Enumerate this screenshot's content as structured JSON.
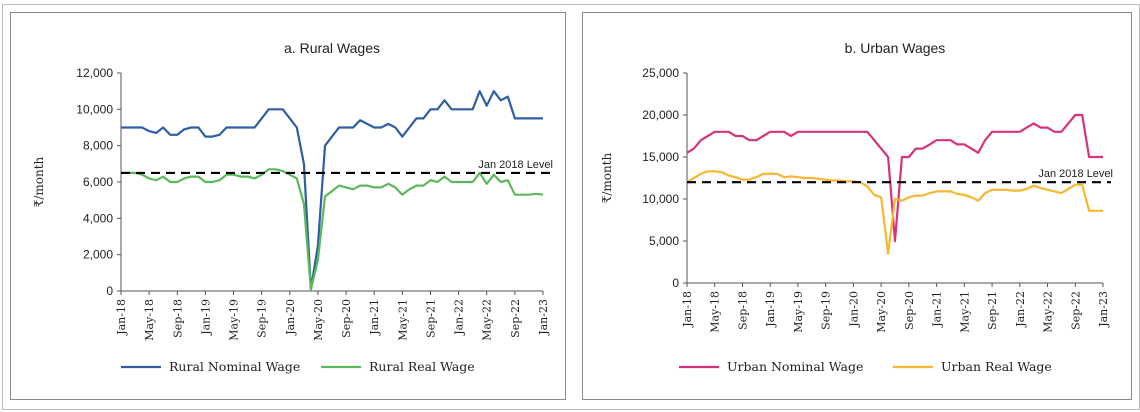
{
  "chart_data": [
    {
      "type": "line",
      "title": "a. Rural Wages",
      "ylabel": "₹/month",
      "ylim": [
        0,
        12000
      ],
      "yticks": [
        0,
        2000,
        4000,
        6000,
        8000,
        10000,
        12000
      ],
      "ytick_labels": [
        "0",
        "2,000",
        "4,000",
        "6,000",
        "8,000",
        "10,000",
        "12,000"
      ],
      "x_tick_labels": [
        "Jan-18",
        "May-18",
        "Sep-18",
        "Jan-19",
        "May-19",
        "Sep-19",
        "Jan-20",
        "May-20",
        "Sep-20",
        "Jan-21",
        "May-21",
        "Sep-21",
        "Jan-22",
        "May-22",
        "Sep-22",
        "Jan-23"
      ],
      "n_months": 61,
      "reference_line": {
        "label": "Jan 2018 Level",
        "value": 6500,
        "color": "#000000"
      },
      "legend_position": "bottom",
      "series": [
        {
          "name": "Rural Nominal Wage",
          "color": "#2e5fa3",
          "values": [
            9000,
            9000,
            9000,
            9000,
            8800,
            8700,
            9000,
            8600,
            8600,
            8900,
            9000,
            9000,
            8500,
            8500,
            8600,
            9000,
            9000,
            9000,
            9000,
            9000,
            9500,
            10000,
            10000,
            10000,
            9500,
            9000,
            7000,
            100,
            2500,
            8000,
            8500,
            9000,
            9000,
            9000,
            9400,
            9200,
            9000,
            9000,
            9200,
            9000,
            8500,
            9000,
            9500,
            9500,
            10000,
            10000,
            10500,
            10000,
            10000,
            10000,
            10000,
            11000,
            10200,
            11000,
            10500,
            10700,
            9500,
            9500,
            9500,
            9500,
            9500
          ]
        },
        {
          "name": "Rural Real Wage",
          "color": "#5bb85b",
          "values": [
            6500,
            6500,
            6500,
            6400,
            6200,
            6100,
            6300,
            6000,
            6000,
            6200,
            6300,
            6300,
            6000,
            6000,
            6100,
            6400,
            6400,
            6300,
            6300,
            6200,
            6400,
            6700,
            6700,
            6600,
            6400,
            6200,
            4800,
            100,
            1700,
            5200,
            5500,
            5800,
            5700,
            5600,
            5800,
            5800,
            5700,
            5700,
            5900,
            5700,
            5300,
            5600,
            5800,
            5800,
            6100,
            6000,
            6300,
            6000,
            6000,
            6000,
            6000,
            6500,
            5900,
            6400,
            6000,
            6100,
            5300,
            5300,
            5300,
            5350,
            5300
          ]
        }
      ]
    },
    {
      "type": "line",
      "title": "b. Urban Wages",
      "ylabel": "₹/month",
      "ylim": [
        0,
        25000
      ],
      "yticks": [
        0,
        5000,
        10000,
        15000,
        20000,
        25000
      ],
      "ytick_labels": [
        "0",
        "5,000",
        "10,000",
        "15,000",
        "20,000",
        "25,000"
      ],
      "x_tick_labels": [
        "Jan-18",
        "May-18",
        "Sep-18",
        "Jan-19",
        "May-19",
        "Sep-19",
        "Jan-20",
        "May-20",
        "Sep-20",
        "Jan-21",
        "May-21",
        "Sep-21",
        "Jan-22",
        "May-22",
        "Sep-22",
        "Jan-23"
      ],
      "n_months": 61,
      "reference_line": {
        "label": "Jan 2018 Level",
        "value": 12000,
        "color": "#000000"
      },
      "legend_position": "bottom",
      "series": [
        {
          "name": "Urban Nominal Wage",
          "color": "#d6337f",
          "values": [
            15500,
            16000,
            17000,
            17500,
            18000,
            18000,
            18000,
            17500,
            17500,
            17000,
            17000,
            17500,
            18000,
            18000,
            18000,
            17500,
            18000,
            18000,
            18000,
            18000,
            18000,
            18000,
            18000,
            18000,
            18000,
            18000,
            18000,
            17000,
            16000,
            15000,
            5000,
            15000,
            15000,
            16000,
            16000,
            16500,
            17000,
            17000,
            17000,
            16500,
            16500,
            16000,
            15500,
            17000,
            18000,
            18000,
            18000,
            18000,
            18000,
            18500,
            19000,
            18500,
            18500,
            18000,
            18000,
            19000,
            20000,
            20000,
            15000,
            15000,
            15000
          ]
        },
        {
          "name": "Urban Real Wage",
          "color": "#f7b731",
          "values": [
            12000,
            12500,
            13000,
            13300,
            13300,
            13200,
            12800,
            12600,
            12300,
            12300,
            12600,
            13000,
            13000,
            13000,
            12600,
            12700,
            12600,
            12500,
            12500,
            12400,
            12300,
            12200,
            12200,
            12100,
            12100,
            12000,
            11500,
            10500,
            10200,
            3500,
            10000,
            9800,
            10200,
            10400,
            10400,
            10700,
            10900,
            10900,
            10900,
            10600,
            10500,
            10200,
            9800,
            10700,
            11100,
            11100,
            11100,
            11000,
            11000,
            11200,
            11600,
            11300,
            11100,
            10900,
            10700,
            11200,
            11700,
            11700,
            8600,
            8600,
            8600
          ]
        }
      ]
    }
  ]
}
